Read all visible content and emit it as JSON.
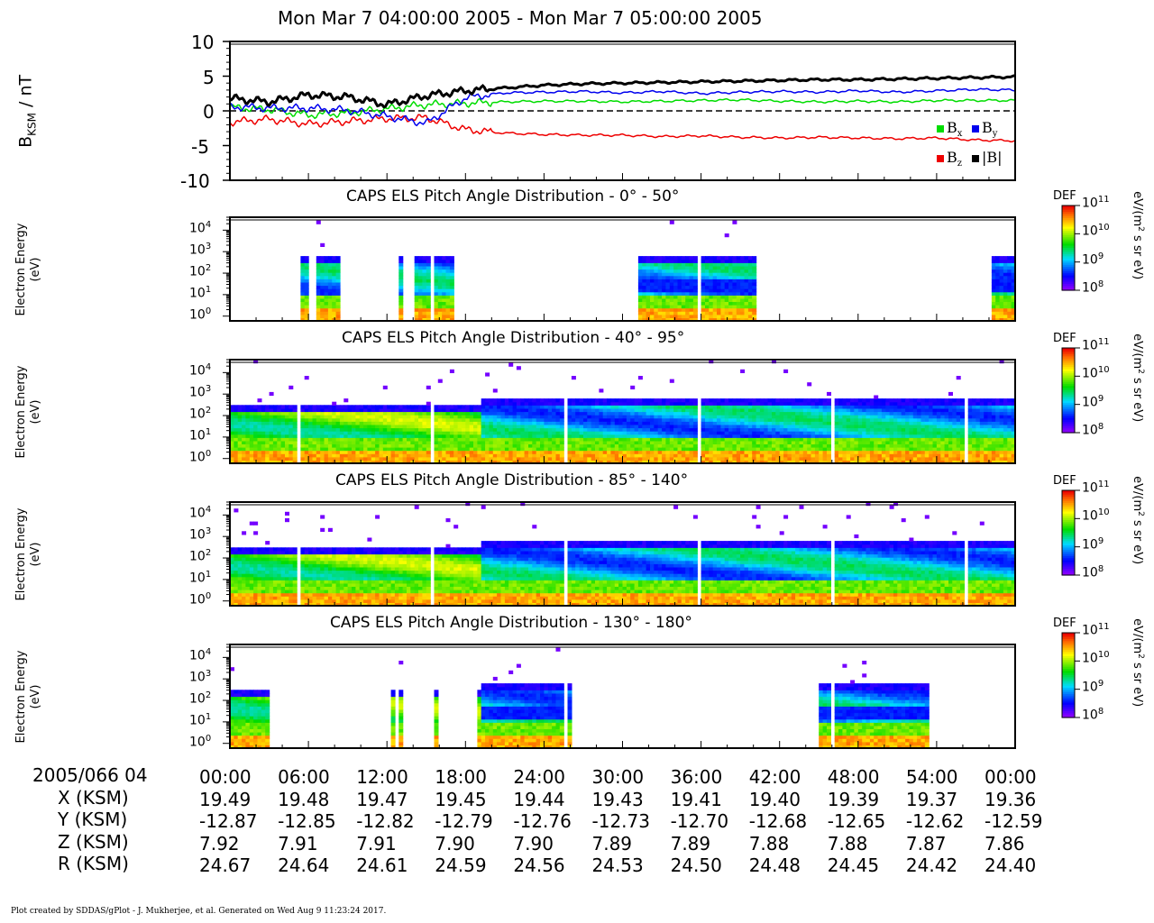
{
  "title": "Mon Mar 7 04:00:00 2005 - Mon Mar 7 05:00:00 2005",
  "colors": {
    "bx": "#00dd00",
    "by": "#0000ee",
    "bz": "#ee0000",
    "btot": "#000000"
  },
  "mag_panel": {
    "ylabel": "B",
    "ylabel_sub": "KSM",
    "ylabel_unit": " / nT",
    "yticks": [
      "10",
      "5",
      "0",
      "-5",
      "-10"
    ],
    "legend": {
      "bx": "B",
      "bx_sub": "x",
      "by": "B",
      "by_sub": "y",
      "bz": "B",
      "bz_sub": "z",
      "btot": "|B|"
    }
  },
  "spectrogram_panels": [
    {
      "title": "CAPS ELS Pitch Angle Distribution - 0° - 50°",
      "ylabel_1": "Electron Energy",
      "ylabel_2": "(eV)"
    },
    {
      "title": "CAPS ELS Pitch Angle Distribution - 40° - 95°",
      "ylabel_1": "Electron Energy",
      "ylabel_2": "(eV)"
    },
    {
      "title": "CAPS ELS Pitch Angle Distribution - 85° - 140°",
      "ylabel_1": "Electron Energy",
      "ylabel_2": "(eV)"
    },
    {
      "title": "CAPS ELS Pitch Angle Distribution - 130° - 180°",
      "ylabel_1": "Electron Energy",
      "ylabel_2": "(eV)"
    }
  ],
  "energy_ticks": [
    "10",
    "10",
    "10",
    "10",
    "10"
  ],
  "energy_tick_exps": [
    "4",
    "3",
    "2",
    "1",
    "0"
  ],
  "colorbar": {
    "label": "DEF",
    "unit_a": "eV/(m",
    "unit_exp": "2",
    "unit_b": " s sr eV)",
    "ticks": [
      "10",
      "10",
      "10",
      "10"
    ],
    "tick_exps": [
      "11",
      "10",
      "9",
      "8"
    ]
  },
  "ephemeris": {
    "row_labels": [
      "2005/066 04",
      "X (KSM)",
      "Y (KSM)",
      "Z (KSM)",
      "R (KSM)"
    ],
    "times": [
      "00:00",
      "06:00",
      "12:00",
      "18:00",
      "24:00",
      "30:00",
      "36:00",
      "42:00",
      "48:00",
      "54:00",
      "00:00"
    ],
    "x": [
      "19.49",
      "19.48",
      "19.47",
      "19.45",
      "19.44",
      "19.43",
      "19.41",
      "19.40",
      "19.39",
      "19.37",
      "19.36"
    ],
    "y": [
      "-12.87",
      "-12.85",
      "-12.82",
      "-12.79",
      "-12.76",
      "-12.73",
      "-12.70",
      "-12.68",
      "-12.65",
      "-12.62",
      "-12.59"
    ],
    "z": [
      "7.92",
      "7.91",
      "7.91",
      "7.90",
      "7.90",
      "7.89",
      "7.89",
      "7.88",
      "7.88",
      "7.87",
      "7.86"
    ],
    "r": [
      "24.67",
      "24.64",
      "24.61",
      "24.59",
      "24.56",
      "24.53",
      "24.50",
      "24.48",
      "24.45",
      "24.42",
      "24.40"
    ]
  },
  "footer": "Plot created by SDDAS/gPlot - J. Mukherjee, et al.  Generated on Wed Aug 9 11:23:24 2017.",
  "chart_data": [
    {
      "type": "line",
      "title": "Mon Mar 7 04:00:00 2005 - Mon Mar 7 05:00:00 2005",
      "xlabel": "",
      "ylabel": "B_KSM / nT",
      "xlim": [
        0,
        60
      ],
      "ylim": [
        -10,
        10
      ],
      "x": [
        0,
        3,
        6,
        9,
        12,
        15,
        18,
        21,
        24,
        27,
        30,
        33,
        36,
        39,
        42,
        45,
        48,
        51,
        54,
        57,
        60
      ],
      "series": [
        {
          "name": "Bx",
          "color": "#00dd00",
          "values": [
            0.5,
            0.2,
            -0.6,
            -0.3,
            0.3,
            0.9,
            1.1,
            1.3,
            1.4,
            1.4,
            1.3,
            1.4,
            1.5,
            1.6,
            1.4,
            1.3,
            1.4,
            1.3,
            1.5,
            1.5,
            1.5
          ]
        },
        {
          "name": "By",
          "color": "#0000ee",
          "values": [
            0.6,
            0.4,
            0.4,
            0.1,
            -0.8,
            -1.8,
            1.9,
            2.6,
            2.7,
            2.8,
            2.6,
            2.8,
            2.5,
            2.7,
            2.8,
            2.7,
            2.9,
            2.7,
            2.9,
            3.1,
            3.0
          ]
        },
        {
          "name": "Bz",
          "color": "#ee0000",
          "values": [
            -1.6,
            -1.2,
            -1.9,
            -1.5,
            -1.1,
            -1.0,
            -2.7,
            -3.2,
            -3.4,
            -3.5,
            -3.5,
            -3.7,
            -3.6,
            -3.8,
            -3.9,
            -3.8,
            -3.9,
            -4.0,
            -3.9,
            -4.2,
            -4.3
          ]
        },
        {
          "name": "|B|",
          "color": "#000000",
          "values": [
            1.8,
            1.3,
            2.3,
            2.0,
            0.9,
            2.2,
            2.9,
            3.3,
            3.7,
            3.9,
            4.0,
            4.1,
            4.2,
            4.3,
            4.4,
            4.5,
            4.5,
            4.6,
            4.7,
            4.8,
            4.9
          ]
        }
      ]
    },
    {
      "type": "heatmap",
      "title": "CAPS ELS Pitch Angle Distribution - 0° - 50°",
      "xlabel": "",
      "ylabel": "Electron Energy (eV)",
      "xlim": [
        0,
        60
      ],
      "y_log_range": [
        0.6,
        40000
      ],
      "colorbar": {
        "label": "DEF",
        "unit": "eV/(m2 s sr eV)",
        "range": [
          100000000.0,
          100000000000.0
        ],
        "scale": "log"
      },
      "coverage_minutes": [
        [
          5.4,
          5.9
        ],
        [
          6.6,
          8.5
        ],
        [
          12.8,
          13.3
        ],
        [
          14.0,
          17.2
        ],
        [
          31.3,
          40.3
        ],
        [
          58.2,
          60
        ]
      ],
      "peak_band_eV": [
        10,
        300
      ]
    },
    {
      "type": "heatmap",
      "title": "CAPS ELS Pitch Angle Distribution - 40° - 95°",
      "xlabel": "",
      "ylabel": "Electron Energy (eV)",
      "xlim": [
        0,
        60
      ],
      "y_log_range": [
        0.6,
        40000
      ],
      "colorbar": {
        "label": "DEF",
        "unit": "eV/(m2 s sr eV)",
        "range": [
          100000000.0,
          100000000000.0
        ],
        "scale": "log"
      },
      "coverage_minutes": [
        [
          0,
          60
        ]
      ],
      "peak_band_eV": [
        5,
        300
      ]
    },
    {
      "type": "heatmap",
      "title": "CAPS ELS Pitch Angle Distribution - 85° - 140°",
      "xlabel": "",
      "ylabel": "Electron Energy (eV)",
      "xlim": [
        0,
        60
      ],
      "y_log_range": [
        0.6,
        40000
      ],
      "colorbar": {
        "label": "DEF",
        "unit": "eV/(m2 s sr eV)",
        "range": [
          100000000.0,
          100000000000.0
        ],
        "scale": "log"
      },
      "coverage_minutes": [
        [
          0,
          60
        ]
      ],
      "peak_band_eV": [
        5,
        300
      ]
    },
    {
      "type": "heatmap",
      "title": "CAPS ELS Pitch Angle Distribution - 130° - 180°",
      "xlabel": "",
      "ylabel": "Electron Energy (eV)",
      "xlim": [
        0,
        60
      ],
      "y_log_range": [
        0.6,
        40000
      ],
      "colorbar": {
        "label": "DEF",
        "unit": "eV/(m2 s sr eV)",
        "range": [
          100000000.0,
          100000000000.0
        ],
        "scale": "log"
      },
      "coverage_minutes": [
        [
          0,
          3.1
        ],
        [
          12.2,
          12.6
        ],
        [
          13.0,
          13.3
        ],
        [
          15.5,
          15.8
        ],
        [
          18.8,
          26.0
        ],
        [
          45.0,
          53.5
        ]
      ],
      "peak_band_eV": [
        5,
        300
      ]
    }
  ]
}
